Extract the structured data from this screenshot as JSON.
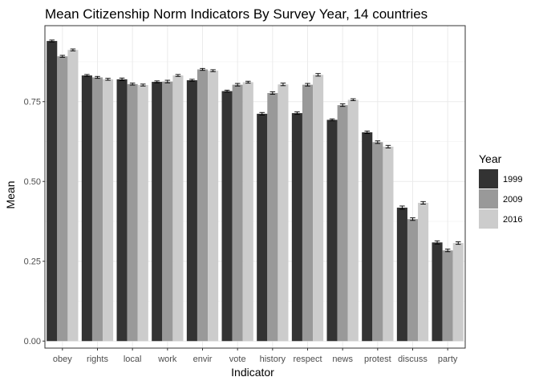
{
  "chart_data": {
    "type": "bar",
    "title": "Mean Citizenship Norm Indicators By Survey Year, 14 countries",
    "xlabel": "Indicator",
    "ylabel": "Mean",
    "ylim": [
      -0.022,
      0.988
    ],
    "yticks": [
      "0.00",
      "0.25",
      "0.50",
      "0.75"
    ],
    "ytick_values": [
      0,
      0.25,
      0.5,
      0.75
    ],
    "grid": true,
    "legend_position": "right",
    "legend_title": "Year",
    "categories": [
      "obey",
      "rights",
      "local",
      "work",
      "envir",
      "vote",
      "history",
      "respect",
      "news",
      "protest",
      "discuss",
      "party"
    ],
    "series": [
      {
        "name": "1999",
        "color": "#333333",
        "values": [
          0.94,
          0.832,
          0.82,
          0.812,
          0.817,
          0.783,
          0.712,
          0.714,
          0.693,
          0.654,
          0.418,
          0.309
        ],
        "errors": [
          0.003,
          0.003,
          0.004,
          0.003,
          0.003,
          0.003,
          0.004,
          0.004,
          0.003,
          0.004,
          0.005,
          0.005
        ]
      },
      {
        "name": "2009",
        "color": "#999999",
        "values": [
          0.892,
          0.826,
          0.805,
          0.813,
          0.851,
          0.803,
          0.777,
          0.803,
          0.739,
          0.623,
          0.382,
          0.284
        ],
        "errors": [
          0.003,
          0.003,
          0.003,
          0.004,
          0.003,
          0.004,
          0.004,
          0.004,
          0.004,
          0.004,
          0.004,
          0.004
        ]
      },
      {
        "name": "2016",
        "color": "#cccccc",
        "values": [
          0.912,
          0.82,
          0.802,
          0.832,
          0.847,
          0.811,
          0.804,
          0.834,
          0.756,
          0.609,
          0.433,
          0.307
        ],
        "errors": [
          0.003,
          0.003,
          0.003,
          0.003,
          0.003,
          0.003,
          0.004,
          0.004,
          0.003,
          0.004,
          0.004,
          0.004
        ]
      }
    ]
  }
}
